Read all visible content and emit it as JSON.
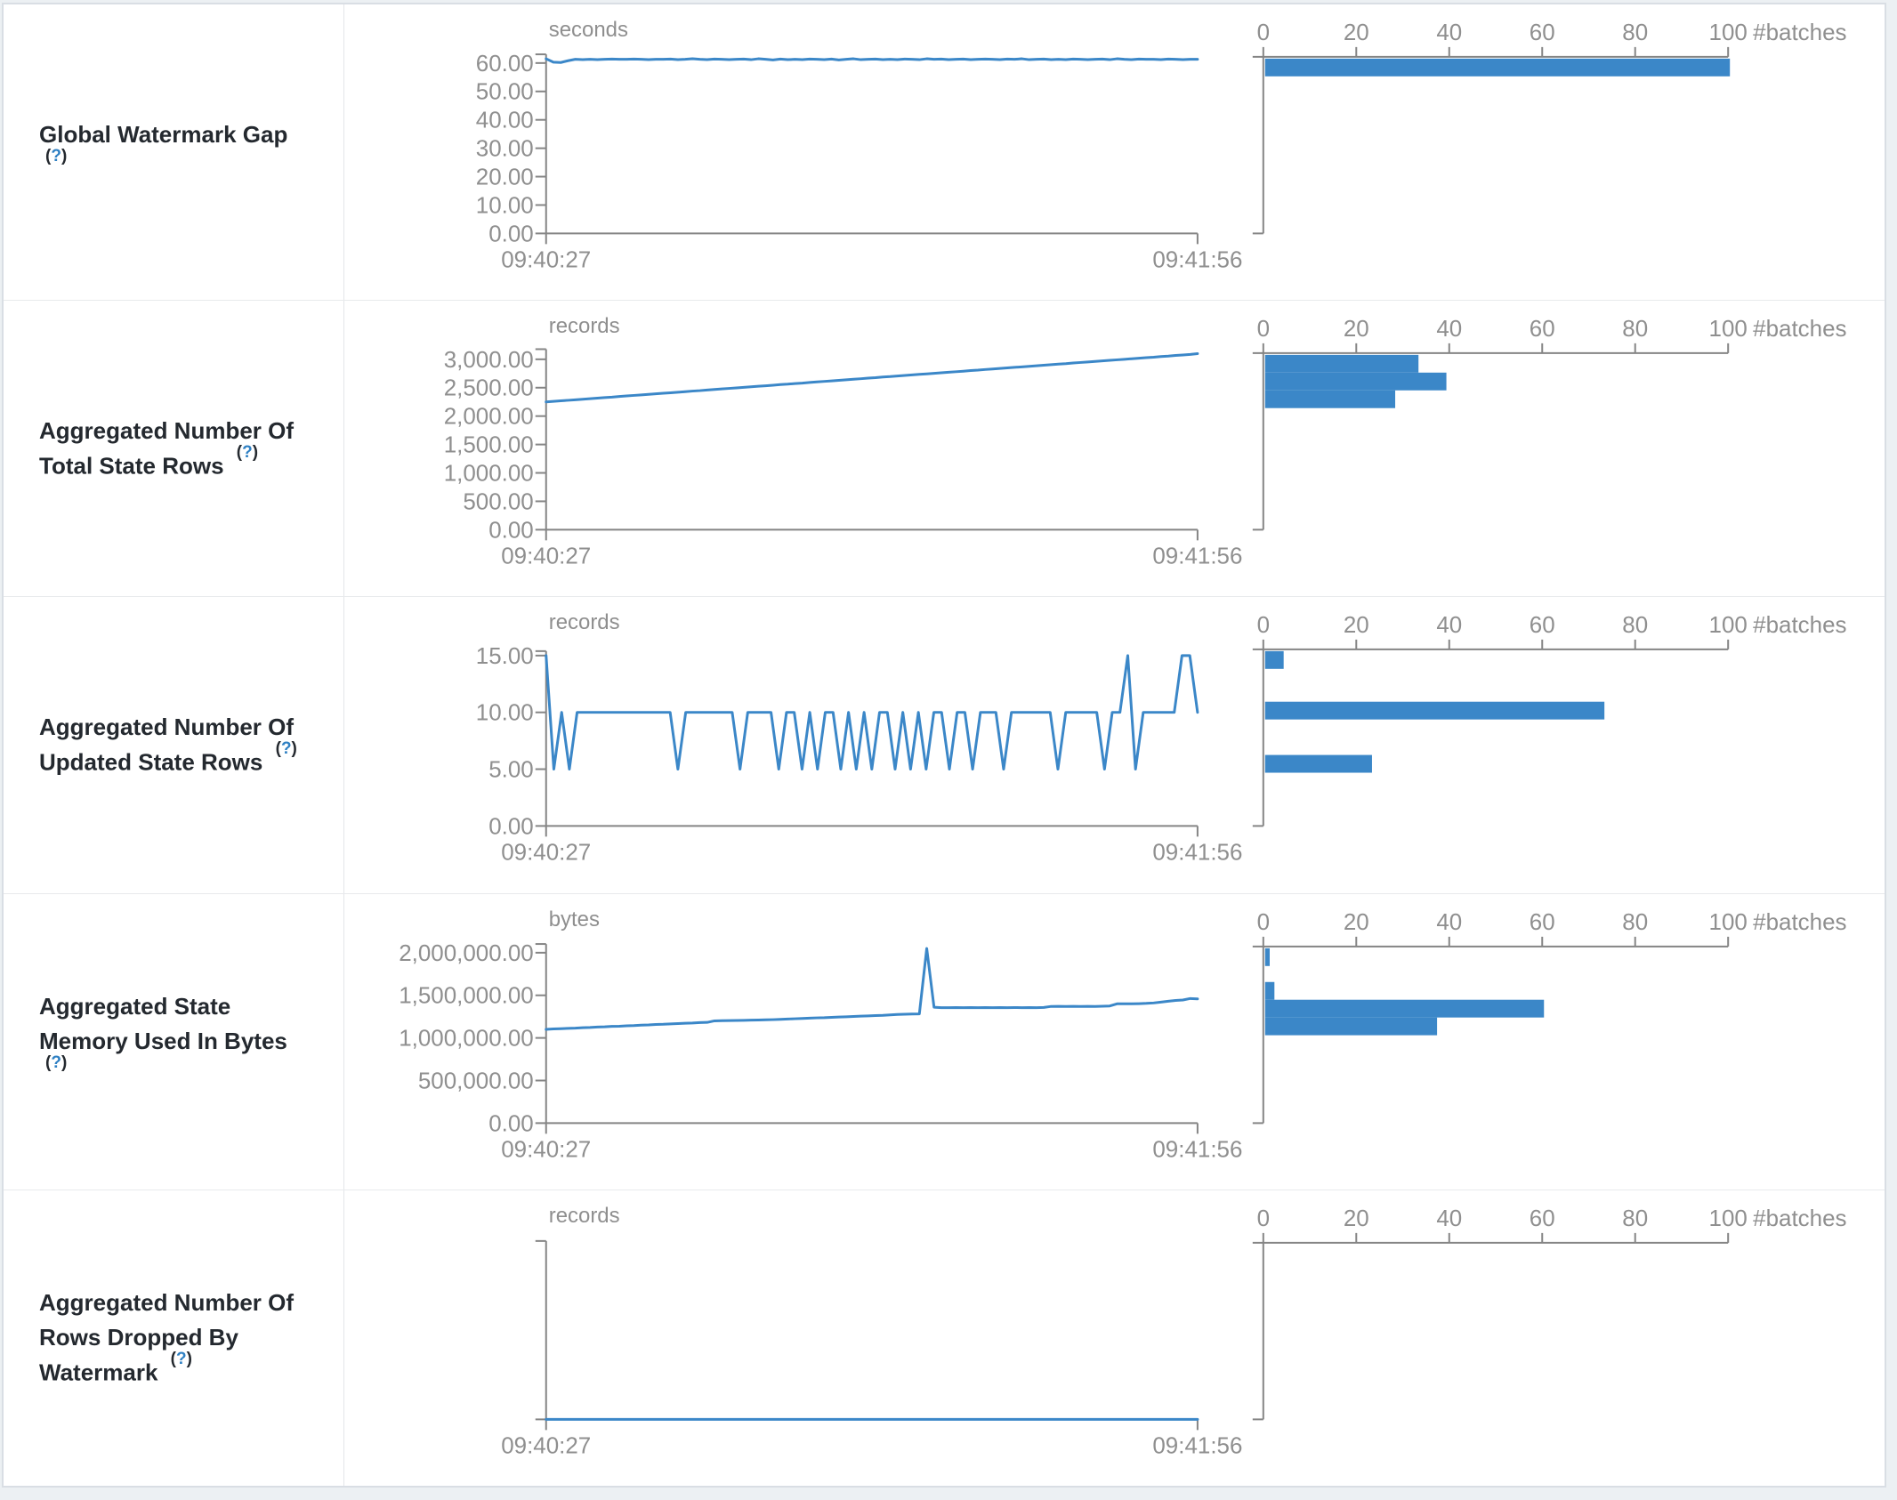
{
  "colors": {
    "accent_blue": "#3b87c8",
    "axis_gray": "#858585",
    "axis_label_gray": "#8f8f8f",
    "title_text": "#24292f",
    "help_blue": "#2f80c3",
    "page_background": "#ecf0f3"
  },
  "x_axis": {
    "start": "09:40:27",
    "end": "09:41:56"
  },
  "histogram_axis": {
    "tick_labels": [
      "0",
      "20",
      "40",
      "60",
      "80",
      "100"
    ],
    "tick_values": [
      0,
      20,
      40,
      60,
      80,
      100
    ],
    "label": "#batches",
    "max": 100
  },
  "help_marker": {
    "open": "(",
    "char": "?",
    "close": ")"
  },
  "chart_data": {
    "note": "see rows[].timeline and rows[].histogram"
  },
  "rows": [
    {
      "title": "Global Watermark Gap",
      "timeline": {
        "type": "line",
        "unit": "seconds",
        "xlabel_start": "09:40:27",
        "xlabel_end": "09:41:56",
        "y_max_tick": 60,
        "y_ticks": [
          {
            "v": 60,
            "label": "60.00"
          },
          {
            "v": 50,
            "label": "50.00"
          },
          {
            "v": 40,
            "label": "40.00"
          },
          {
            "v": 30,
            "label": "30.00"
          },
          {
            "v": 20,
            "label": "20.00"
          },
          {
            "v": 10,
            "label": "10.00"
          },
          {
            "v": 0,
            "label": "0.00"
          }
        ],
        "values": [
          61.5,
          60.3,
          60.2,
          60.8,
          61.3,
          61.2,
          61.3,
          61.2,
          61.3,
          61.4,
          61.3,
          61.3,
          61.4,
          61.3,
          61.2,
          61.3,
          61.3,
          61.4,
          61.2,
          61.3,
          61.5,
          61.3,
          61.2,
          61.4,
          61.3,
          61.2,
          61.3,
          61.4,
          61.2,
          61.5,
          61.3,
          61.1,
          61.4,
          61.2,
          61.3,
          61.2,
          61.4,
          61.3,
          61.2,
          61.4,
          61.1,
          61.3,
          61.5,
          61.2,
          61.3,
          61.4,
          61.2,
          61.3,
          61.2,
          61.4,
          61.3,
          61.2,
          61.5,
          61.3,
          61.4,
          61.2,
          61.3,
          61.4,
          61.2,
          61.3,
          61.4,
          61.3,
          61.2,
          61.4,
          61.3,
          61.5,
          61.2,
          61.3,
          61.4,
          61.2,
          61.3,
          61.2,
          61.4,
          61.3,
          61.2,
          61.3,
          61.4,
          61.2,
          61.5,
          61.3,
          61.2,
          61.4,
          61.3,
          61.3,
          61.2,
          61.4,
          61.3,
          61.2,
          61.3,
          61.3
        ]
      },
      "histogram": {
        "type": "bar",
        "xlabel": "#batches",
        "bars": [
          100
        ],
        "bar_tops": [
          61
        ]
      }
    },
    {
      "title": "Aggregated Number Of Total State Rows",
      "timeline": {
        "type": "line",
        "unit": "records",
        "xlabel_start": "09:40:27",
        "xlabel_end": "09:41:56",
        "y_max_tick": 3000,
        "y_ticks": [
          {
            "v": 3000,
            "label": "3,000.00"
          },
          {
            "v": 2500,
            "label": "2,500.00"
          },
          {
            "v": 2000,
            "label": "2,000.00"
          },
          {
            "v": 1500,
            "label": "1,500.00"
          },
          {
            "v": 1000,
            "label": "1,000.00"
          },
          {
            "v": 500,
            "label": "500.00"
          },
          {
            "v": 0,
            "label": "0.00"
          }
        ],
        "values": [
          2250,
          2259,
          2269,
          2278,
          2288,
          2297,
          2307,
          2316,
          2326,
          2335,
          2345,
          2354,
          2364,
          2373,
          2383,
          2392,
          2402,
          2411,
          2421,
          2430,
          2440,
          2449,
          2459,
          2468,
          2478,
          2487,
          2497,
          2506,
          2516,
          2525,
          2535,
          2544,
          2554,
          2563,
          2573,
          2582,
          2592,
          2601,
          2611,
          2620,
          2630,
          2639,
          2649,
          2658,
          2668,
          2677,
          2687,
          2696,
          2706,
          2715,
          2725,
          2734,
          2744,
          2753,
          2763,
          2772,
          2782,
          2791,
          2801,
          2810,
          2820,
          2829,
          2839,
          2848,
          2858,
          2867,
          2877,
          2886,
          2896,
          2905,
          2915,
          2924,
          2934,
          2943,
          2953,
          2962,
          2972,
          2981,
          2991,
          3000,
          3010,
          3019,
          3029,
          3038,
          3048,
          3057,
          3067,
          3076,
          3086,
          3100
        ]
      },
      "histogram": {
        "type": "bar",
        "xlabel": "#batches",
        "bars": [
          33,
          39,
          28
        ],
        "bar_tops": [
          61,
          81,
          101
        ]
      }
    },
    {
      "title": "Aggregated Number Of Updated State Rows",
      "timeline": {
        "type": "line",
        "unit": "records",
        "xlabel_start": "09:40:27",
        "xlabel_end": "09:41:56",
        "y_max_tick": 15,
        "y_ticks": [
          {
            "v": 15,
            "label": "15.00"
          },
          {
            "v": 10,
            "label": "10.00"
          },
          {
            "v": 5,
            "label": "5.00"
          },
          {
            "v": 0,
            "label": "0.00"
          }
        ],
        "values": [
          15,
          5,
          10,
          5,
          10,
          10,
          10,
          10,
          10,
          10,
          10,
          10,
          10,
          10,
          10,
          10,
          10,
          5,
          10,
          10,
          10,
          10,
          10,
          10,
          10,
          5,
          10,
          10,
          10,
          10,
          5,
          10,
          10,
          5,
          10,
          5,
          10,
          10,
          5,
          10,
          5,
          10,
          5,
          10,
          10,
          5,
          10,
          5,
          10,
          5,
          10,
          10,
          5,
          10,
          10,
          5,
          10,
          10,
          10,
          5,
          10,
          10,
          10,
          10,
          10,
          10,
          5,
          10,
          10,
          10,
          10,
          10,
          5,
          10,
          10,
          15,
          5,
          10,
          10,
          10,
          10,
          10,
          15,
          15,
          10
        ]
      },
      "histogram": {
        "type": "bar",
        "xlabel": "#batches",
        "bars": [
          4,
          73,
          23
        ],
        "bar_tops": [
          61,
          118,
          178
        ]
      }
    },
    {
      "title": "Aggregated State Memory Used In Bytes",
      "timeline": {
        "type": "line",
        "unit": "bytes",
        "xlabel_start": "09:40:27",
        "xlabel_end": "09:41:56",
        "y_max_tick": 2000000,
        "y_ticks": [
          {
            "v": 2000000,
            "label": "2,000,000.00"
          },
          {
            "v": 1500000,
            "label": "1,500,000.00"
          },
          {
            "v": 1000000,
            "label": "1,000,000.00"
          },
          {
            "v": 500000,
            "label": "500,000.00"
          },
          {
            "v": 0,
            "label": "0.00"
          }
        ],
        "values": [
          1100000,
          1105000,
          1108000,
          1112000,
          1115000,
          1120000,
          1123000,
          1128000,
          1130000,
          1135000,
          1138000,
          1142000,
          1145000,
          1150000,
          1152000,
          1158000,
          1160000,
          1165000,
          1168000,
          1172000,
          1175000,
          1180000,
          1182000,
          1200000,
          1202000,
          1203000,
          1205000,
          1206000,
          1208000,
          1210000,
          1212000,
          1215000,
          1218000,
          1222000,
          1225000,
          1228000,
          1232000,
          1235000,
          1238000,
          1242000,
          1245000,
          1248000,
          1252000,
          1255000,
          1258000,
          1262000,
          1265000,
          1270000,
          1275000,
          1278000,
          1280000,
          1282000,
          2050000,
          1360000,
          1355000,
          1355000,
          1356000,
          1355000,
          1356000,
          1355000,
          1356000,
          1355000,
          1356000,
          1355000,
          1356000,
          1355000,
          1356000,
          1355000,
          1357000,
          1370000,
          1371000,
          1370000,
          1371000,
          1370000,
          1371000,
          1370000,
          1372000,
          1375000,
          1400000,
          1401000,
          1400000,
          1402000,
          1405000,
          1410000,
          1420000,
          1430000,
          1440000,
          1445000,
          1462000,
          1458000
        ]
      },
      "histogram": {
        "type": "bar",
        "xlabel": "#batches",
        "bars": [
          1,
          2,
          60,
          37
        ],
        "bar_tops": [
          61,
          99,
          119,
          139
        ]
      }
    },
    {
      "title": "Aggregated Number Of Rows Dropped By Watermark",
      "timeline": {
        "type": "line",
        "unit": "records",
        "xlabel_start": "09:40:27",
        "xlabel_end": "09:41:56",
        "y_max_tick": 1,
        "y_ticks": [],
        "values": [
          0,
          0,
          0,
          0,
          0,
          0,
          0,
          0,
          0,
          0
        ]
      },
      "histogram": {
        "type": "bar",
        "xlabel": "#batches",
        "bars": [],
        "bar_tops": []
      }
    }
  ]
}
